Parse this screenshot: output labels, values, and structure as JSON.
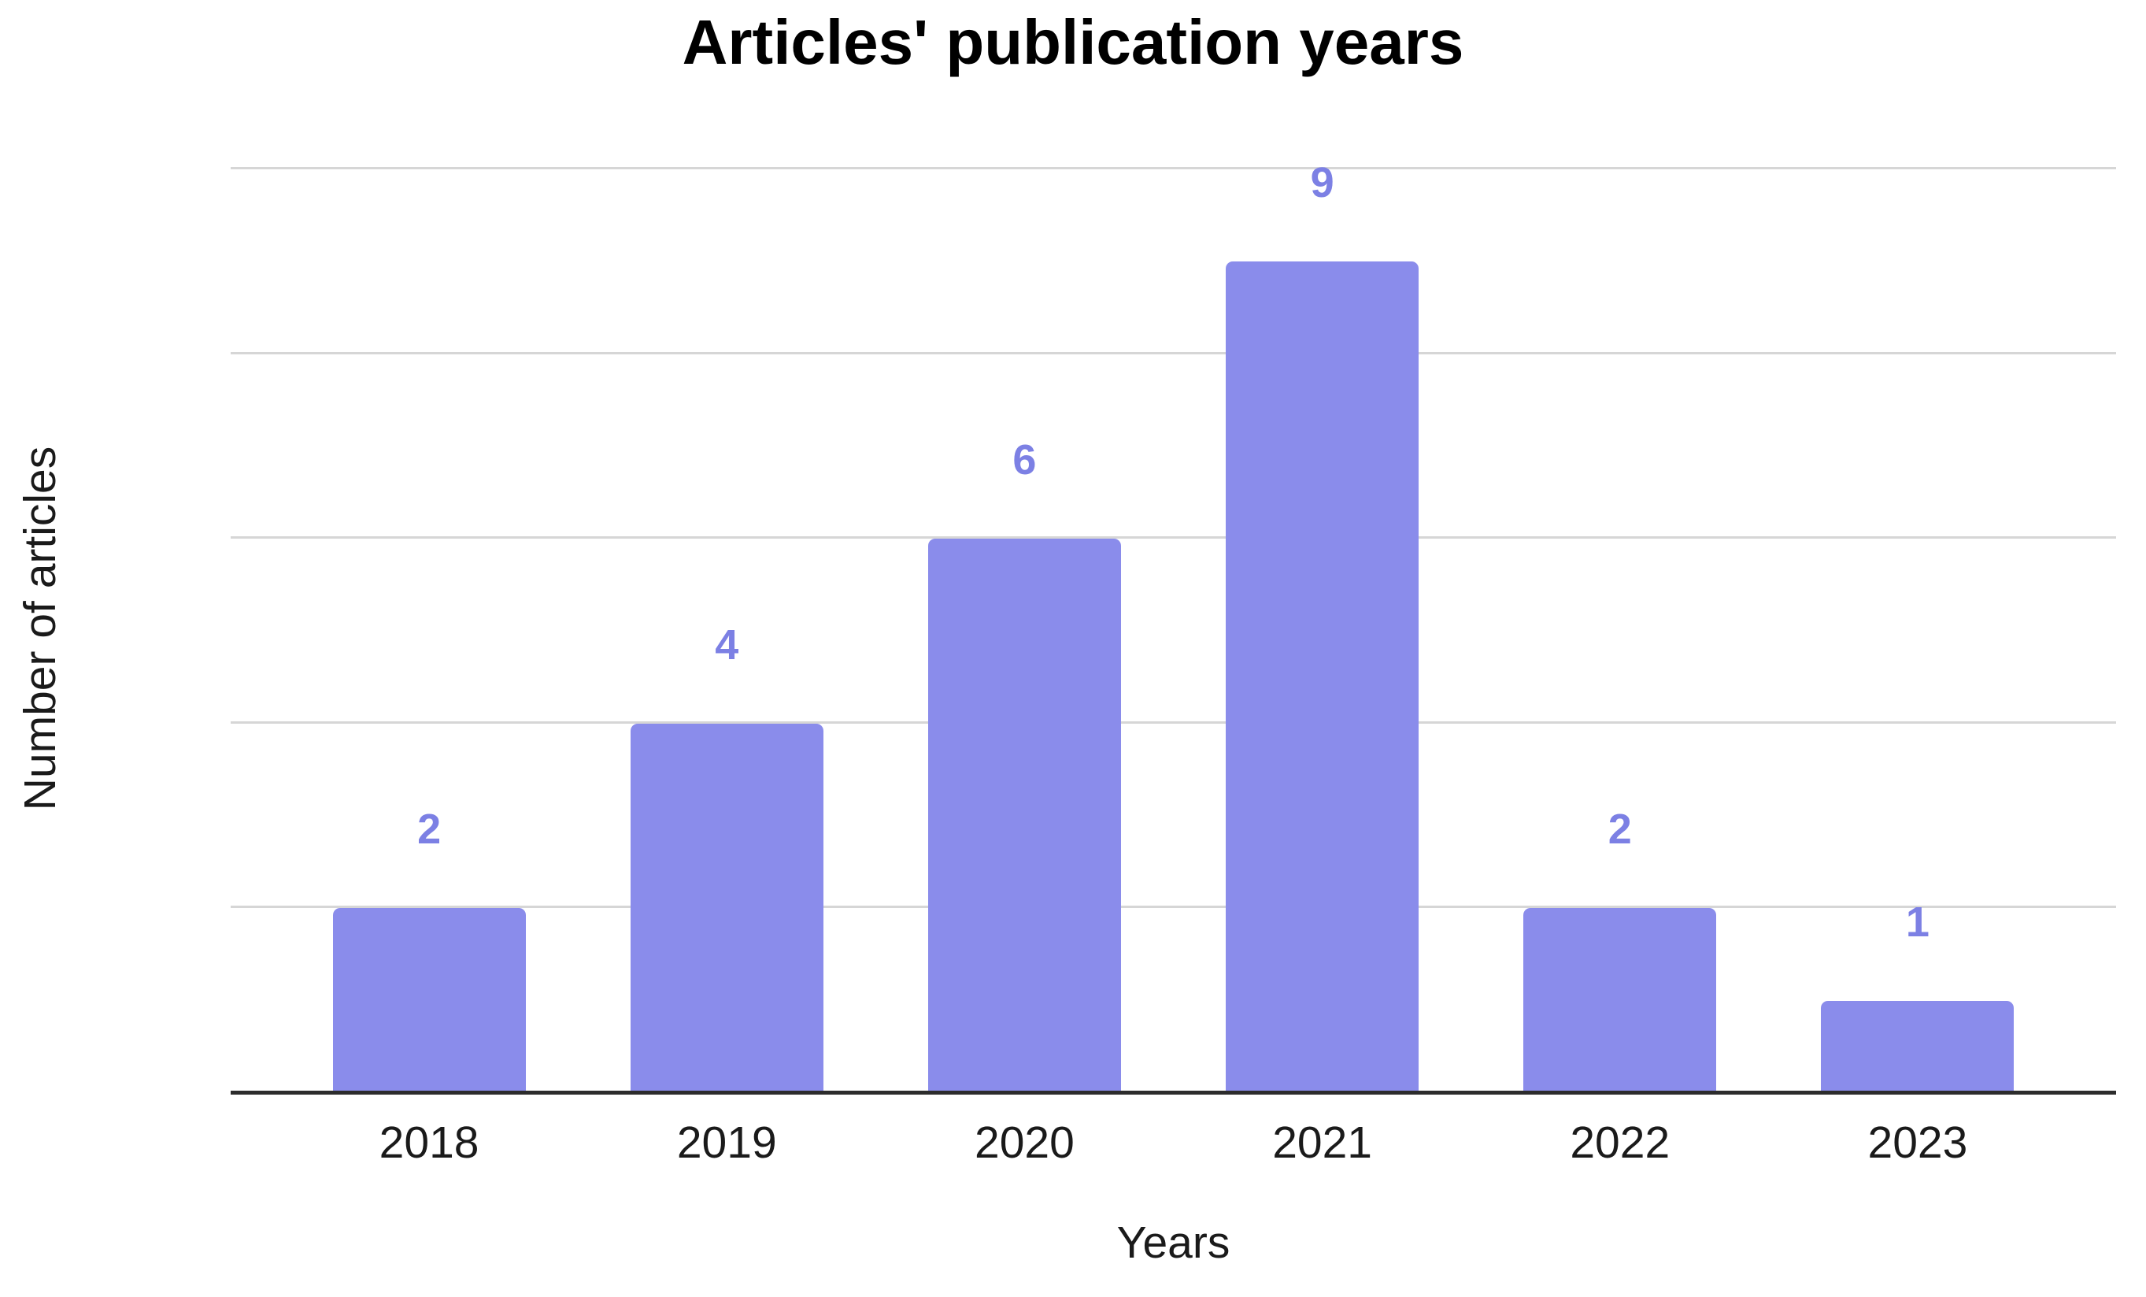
{
  "chart_data": {
    "type": "bar",
    "title": "Articles' publication years",
    "xlabel": "Years",
    "ylabel": "Number of articles",
    "categories": [
      "2018",
      "2019",
      "2020",
      "2021",
      "2022",
      "2023"
    ],
    "values": [
      2,
      4,
      6,
      9,
      2,
      1
    ],
    "data_labels": [
      2,
      4,
      6,
      9,
      2,
      1
    ],
    "ylim": [
      0,
      10
    ],
    "gridline_step": 2,
    "grid": "horizontal",
    "y_tick_labels": "none",
    "legend": "none"
  },
  "colors": {
    "background": "#ffffff",
    "bar_fill": "#8a8ceb",
    "data_label": "#7c80e4",
    "gridline": "#d6d6d6",
    "axis_line": "#2c2c2c",
    "title_text": "#000000",
    "tick_text": "#1a1a1a",
    "axis_title_text": "#1a1a1a"
  }
}
